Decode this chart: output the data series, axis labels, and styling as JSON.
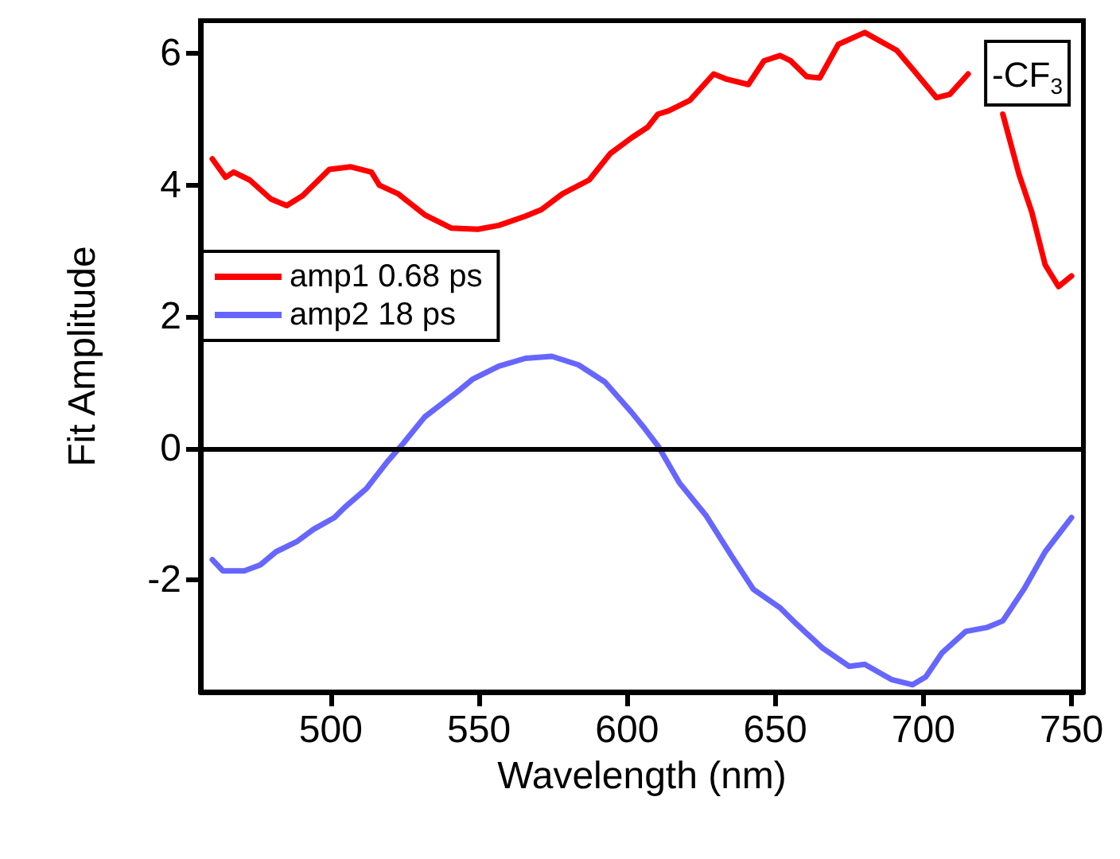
{
  "chart_data": {
    "type": "line",
    "xlabel": "Wavelength (nm)",
    "ylabel": "Fit Amplitude",
    "xlim": [
      456,
      754
    ],
    "xticks": [
      500,
      550,
      600,
      650,
      700,
      750
    ],
    "ylim": [
      -3.7,
      6.5
    ],
    "yticks": [
      -2,
      0,
      2,
      4,
      6
    ],
    "grid": false,
    "legend": "left",
    "marker": "none",
    "line_style": "solid",
    "annotations": [
      "-CF$_{3}$"
    ],
    "ref_lines": [
      {
        "axis": "y",
        "value": 0,
        "color": "#000000"
      }
    ],
    "series": [
      {
        "name": "amp1 0.68 ps",
        "color": "#ff0000",
        "x": [
          460,
          464.5,
          467.2,
          472.6,
          479.8,
          485.1,
          490.5,
          499.5,
          506.6,
          513.7,
          516.4,
          522.7,
          531.7,
          540.6,
          549.6,
          556.7,
          565.7,
          571.1,
          578.2,
          587.2,
          594.3,
          601.5,
          606.9,
          610.4,
          614,
          621.2,
          629.2,
          633.7,
          640.9,
          646.2,
          651.6,
          655.2,
          660.6,
          665,
          671.3,
          680.2,
          691,
          696.3,
          704.4,
          708.9,
          715.1,
          721,
          726.8,
          732.3,
          736.6,
          741.1,
          745.6,
          750
        ],
        "values": [
          4.4,
          4.12,
          4.2,
          4.08,
          3.79,
          3.69,
          3.84,
          4.24,
          4.28,
          4.2,
          4.0,
          3.87,
          3.55,
          3.35,
          3.33,
          3.39,
          3.53,
          3.63,
          3.87,
          4.08,
          4.48,
          4.72,
          4.88,
          5.08,
          5.13,
          5.29,
          5.69,
          5.61,
          5.53,
          5.89,
          5.97,
          5.89,
          5.65,
          5.63,
          6.14,
          6.32,
          6.05,
          5.77,
          5.33,
          5.38,
          5.69,
          null,
          5.08,
          4.16,
          3.59,
          2.79,
          2.46,
          2.62
        ]
      },
      {
        "name": "amp2 18 ps",
        "color": "#6666ff",
        "x": [
          460,
          463.6,
          470.8,
          476.2,
          481.5,
          488.7,
          494.1,
          501.2,
          504.8,
          512,
          519.1,
          524.5,
          531.7,
          542.4,
          547.8,
          556.7,
          565.7,
          574.6,
          583.6,
          592.5,
          601.5,
          606,
          610.4,
          617.6,
          626.5,
          635.5,
          642.6,
          651.6,
          657,
          665.9,
          674.9,
          680.2,
          689.2,
          696.3,
          700.8,
          706.2,
          714.3,
          721.4,
          726.8,
          733.9,
          741.1,
          750
        ],
        "values": [
          -1.69,
          -1.86,
          -1.86,
          -1.77,
          -1.57,
          -1.41,
          -1.23,
          -1.05,
          -0.89,
          -0.61,
          -0.2,
          0.08,
          0.48,
          0.85,
          1.05,
          1.25,
          1.37,
          1.4,
          1.27,
          1.01,
          0.55,
          0.3,
          0.04,
          -0.52,
          -1.01,
          -1.65,
          -2.14,
          -2.42,
          -2.66,
          -3.03,
          -3.31,
          -3.28,
          -3.51,
          -3.59,
          -3.47,
          -3.11,
          -2.78,
          -2.72,
          -2.62,
          -2.14,
          -1.57,
          -1.05
        ]
      }
    ]
  }
}
